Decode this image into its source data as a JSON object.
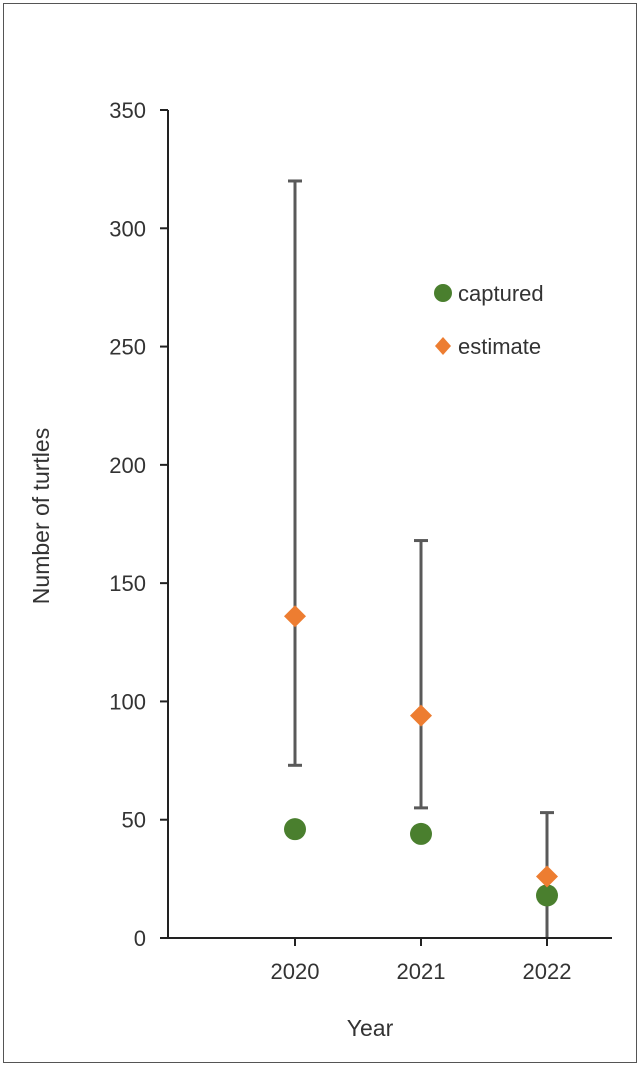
{
  "chart_data": {
    "type": "scatter",
    "title": "",
    "xlabel": "Year",
    "ylabel": "Number of turtles",
    "categories": [
      "2020",
      "2021",
      "2022"
    ],
    "ylim": [
      0,
      350
    ],
    "yticks": [
      "0",
      "50",
      "100",
      "150",
      "200",
      "250",
      "300",
      "350"
    ],
    "grid": false,
    "legend_position": "upper-right",
    "series": [
      {
        "name": "captured",
        "marker": "circle",
        "color": "#4a7f2e",
        "values": [
          46,
          44,
          18
        ]
      },
      {
        "name": "estimate",
        "marker": "diamond",
        "color": "#ed7d31",
        "values": [
          136,
          94,
          26
        ],
        "error_low": [
          73,
          55,
          0
        ],
        "error_high": [
          320,
          168,
          53
        ]
      }
    ],
    "error_bar_color": "#595959"
  }
}
